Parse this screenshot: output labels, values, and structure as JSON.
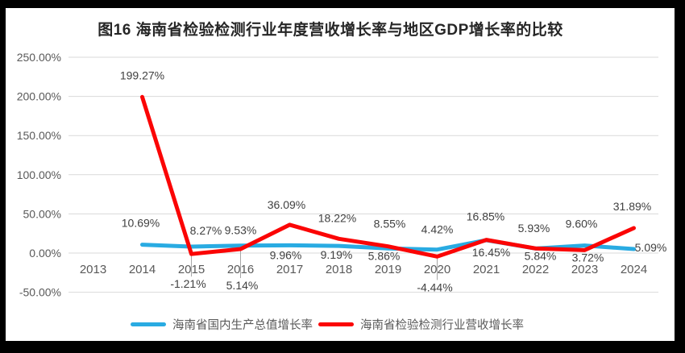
{
  "page": {
    "background_color": "#000000",
    "canvas_color": "#ffffff"
  },
  "title": "图16  海南省检验检测行业年度营收增长率与地区GDP增长率的比较",
  "legend": {
    "items": [
      {
        "label": "海南省国内生产总值增长率",
        "color": "#29abe2"
      },
      {
        "label": "海南省检验检测行业营收增长率",
        "color": "#fb0505"
      }
    ]
  },
  "chart_data": {
    "type": "line",
    "title": "图16  海南省检验检测行业年度营收增长率与地区GDP增长率的比较",
    "categories": [
      "2013",
      "2014",
      "2015",
      "2016",
      "2017",
      "2018",
      "2019",
      "2020",
      "2021",
      "2022",
      "2023",
      "2024"
    ],
    "series": [
      {
        "name": "海南省国内生产总值增长率",
        "color": "#29abe2",
        "start_category": "2014",
        "values": [
          10.69,
          8.27,
          9.53,
          9.96,
          9.19,
          5.86,
          4.42,
          16.45,
          5.84,
          9.6,
          5.09
        ]
      },
      {
        "name": "海南省检验检测行业营收增长率",
        "color": "#fb0505",
        "start_category": "2014",
        "values": [
          199.27,
          -1.21,
          5.14,
          36.09,
          18.22,
          8.55,
          -4.44,
          16.85,
          5.93,
          3.72,
          31.89
        ]
      }
    ],
    "y_ticks": [
      "250.00%",
      "200.00%",
      "150.00%",
      "100.00%",
      "50.00%",
      "0.00%",
      "-50.00%"
    ],
    "y_tick_values": [
      250,
      200,
      150,
      100,
      50,
      0,
      -50
    ],
    "ylim": [
      -50,
      250
    ],
    "xlabel": "",
    "ylabel": "",
    "grid": true,
    "data_labels": true,
    "legend_position": "bottom",
    "grid_color": "#d9d9d9",
    "axis_text_color": "#595959",
    "data_label_color": "#404040",
    "leader_line_color": "#a6a6a6"
  }
}
